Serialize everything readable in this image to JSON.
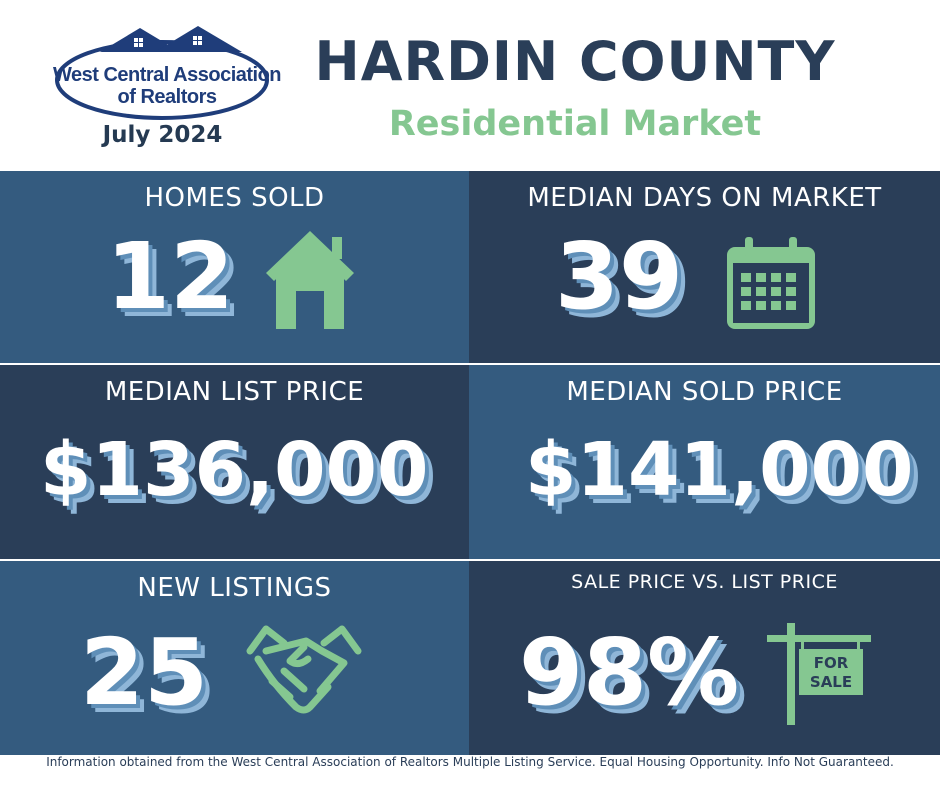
{
  "header": {
    "logo_line1": "West Central Association",
    "logo_line2": "of Realtors",
    "date": "July 2024",
    "title": "HARDIN COUNTY",
    "subtitle": "Residential Market"
  },
  "stats": {
    "homes_sold": {
      "label": "HOMES SOLD",
      "value": "12",
      "icon": "house-icon"
    },
    "median_days": {
      "label": "MEDIAN DAYS ON MARKET",
      "value": "39",
      "icon": "calendar-icon"
    },
    "median_list": {
      "label": "MEDIAN LIST PRICE",
      "value": "$136,000"
    },
    "median_sold": {
      "label": "MEDIAN SOLD PRICE",
      "value": "$141,000"
    },
    "new_listings": {
      "label": "NEW LISTINGS",
      "value": "25",
      "icon": "handshake-icon"
    },
    "sale_vs_list": {
      "label": "SALE PRICE VS. LIST PRICE",
      "value": "98%",
      "icon": "for-sale-sign-icon",
      "sign_line1": "FOR",
      "sign_line2": "SALE"
    }
  },
  "footer": {
    "text": "Information obtained from the West Central Association of Realtors Multiple Listing Service. Equal Housing Opportunity. Info Not Guaranteed."
  },
  "colors": {
    "light_panel": "#345b7f",
    "dark_panel": "#2a3e58",
    "accent_green": "#85c791",
    "logo_blue": "#1f3d7a"
  }
}
